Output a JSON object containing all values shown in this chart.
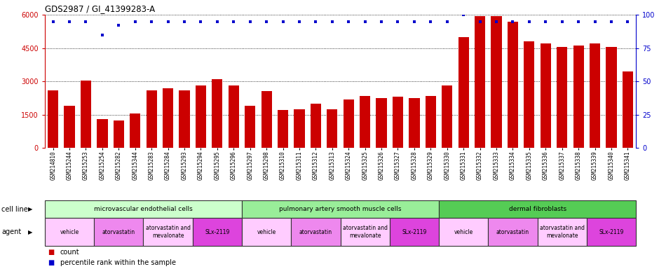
{
  "title": "GDS2987 / GI_41399283-A",
  "gsm_labels": [
    "GSM214810",
    "GSM215244",
    "GSM215253",
    "GSM215254",
    "GSM215282",
    "GSM215344",
    "GSM215283",
    "GSM215284",
    "GSM215293",
    "GSM215294",
    "GSM215295",
    "GSM215296",
    "GSM215297",
    "GSM215298",
    "GSM215310",
    "GSM215311",
    "GSM215312",
    "GSM215313",
    "GSM215324",
    "GSM215325",
    "GSM215326",
    "GSM215327",
    "GSM215328",
    "GSM215329",
    "GSM215330",
    "GSM215331",
    "GSM215332",
    "GSM215333",
    "GSM215334",
    "GSM215335",
    "GSM215336",
    "GSM215337",
    "GSM215338",
    "GSM215339",
    "GSM215340",
    "GSM215341"
  ],
  "bar_values": [
    2600,
    1900,
    3050,
    1300,
    1250,
    1550,
    2600,
    2700,
    2600,
    2800,
    3100,
    2800,
    1900,
    2550,
    1700,
    1750,
    2000,
    1750,
    2200,
    2350,
    2250,
    2300,
    2250,
    2350,
    2800,
    5000,
    5950,
    5950,
    5700,
    4800,
    4700,
    4550,
    4600,
    4700,
    4550,
    3450
  ],
  "percentile_values_left": [
    95,
    95,
    95,
    85,
    92,
    95,
    95,
    95,
    95,
    95,
    95,
    95,
    95,
    95,
    95,
    95,
    95,
    95,
    95,
    95,
    95,
    95,
    95,
    95,
    95,
    100,
    95,
    95,
    95,
    95,
    95,
    95,
    95,
    95,
    95,
    95
  ],
  "bar_color": "#cc0000",
  "percentile_color": "#0000cc",
  "ylim_left": [
    0,
    6000
  ],
  "ylim_right": [
    0,
    100
  ],
  "yticks_left": [
    0,
    1500,
    3000,
    4500,
    6000
  ],
  "yticks_right": [
    0,
    25,
    50,
    75,
    100
  ],
  "cell_line_groups": [
    {
      "label": "microvascular endothelial cells",
      "start": 0,
      "end": 12,
      "color": "#ccffcc"
    },
    {
      "label": "pulmonary artery smooth muscle cells",
      "start": 12,
      "end": 24,
      "color": "#99ee99"
    },
    {
      "label": "dermal fibroblasts",
      "start": 24,
      "end": 36,
      "color": "#55cc55"
    }
  ],
  "agent_groups": [
    {
      "label": "vehicle",
      "start": 0,
      "end": 3,
      "fcolor": "#ffccff"
    },
    {
      "label": "atorvastatin",
      "start": 3,
      "end": 6,
      "fcolor": "#ee88ee"
    },
    {
      "label": "atorvastatin and\nmevalonate",
      "start": 6,
      "end": 9,
      "fcolor": "#ffccff"
    },
    {
      "label": "SLx-2119",
      "start": 9,
      "end": 12,
      "fcolor": "#dd44dd"
    },
    {
      "label": "vehicle",
      "start": 12,
      "end": 15,
      "fcolor": "#ffccff"
    },
    {
      "label": "atorvastatin",
      "start": 15,
      "end": 18,
      "fcolor": "#ee88ee"
    },
    {
      "label": "atorvastatin and\nmevalonate",
      "start": 18,
      "end": 21,
      "fcolor": "#ffccff"
    },
    {
      "label": "SLx-2119",
      "start": 21,
      "end": 24,
      "fcolor": "#dd44dd"
    },
    {
      "label": "vehicle",
      "start": 24,
      "end": 27,
      "fcolor": "#ffccff"
    },
    {
      "label": "atorvastatin",
      "start": 27,
      "end": 30,
      "fcolor": "#ee88ee"
    },
    {
      "label": "atorvastatin and\nmevalonate",
      "start": 30,
      "end": 33,
      "fcolor": "#ffccff"
    },
    {
      "label": "SLx-2119",
      "start": 33,
      "end": 36,
      "fcolor": "#dd44dd"
    }
  ],
  "cell_line_row_label": "cell line",
  "agent_row_label": "agent",
  "legend_count_label": "count",
  "legend_percentile_label": "percentile rank within the sample",
  "background_color": "#ffffff"
}
